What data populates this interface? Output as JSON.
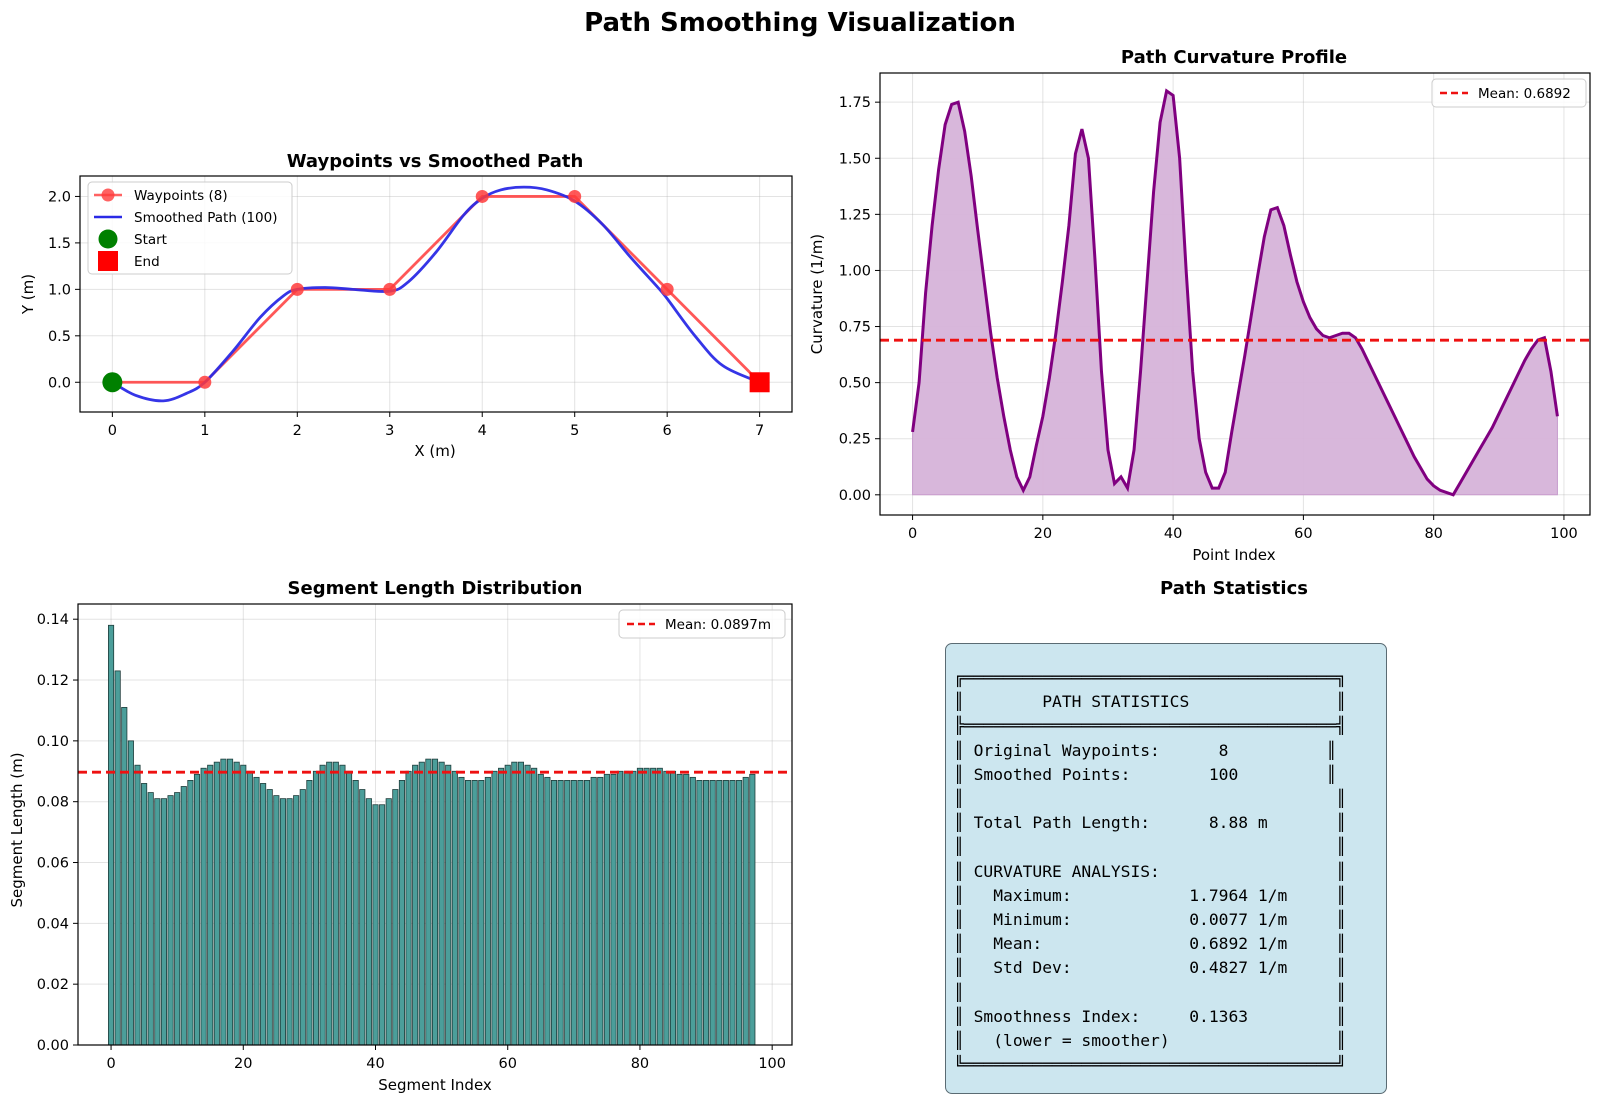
{
  "suptitle": "Path Smoothing Visualization",
  "colors": {
    "waypoints": "#ff3b3b",
    "smoothed": "#2a2ae6",
    "start": "#008000",
    "end": "#ff0000",
    "curvature_line": "#800080",
    "curvature_fill": "#d6b3d9",
    "mean": "#ee1111",
    "bar_fill": "#4b9e9a",
    "bar_edge": "#1f3d3b",
    "stats_bg": "#cce6ef"
  },
  "charts": {
    "waypoints": {
      "title": "Waypoints vs Smoothed Path",
      "xlabel": "X (m)",
      "ylabel": "Y (m)",
      "xlim": [
        -0.35,
        7.35
      ],
      "ylim": [
        -0.32,
        2.22
      ],
      "xticks": [
        "0",
        "1",
        "2",
        "3",
        "4",
        "5",
        "6",
        "7"
      ],
      "yticks": [
        "0.0",
        "0.5",
        "1.0",
        "1.5",
        "2.0"
      ],
      "legend": [
        "Waypoints (8)",
        "Smoothed Path (100)",
        "Start",
        "End"
      ]
    },
    "curvature": {
      "title": "Path Curvature Profile",
      "xlabel": "Point Index",
      "ylabel": "Curvature (1/m)",
      "xlim": [
        -5,
        104
      ],
      "ylim": [
        -0.09,
        1.88
      ],
      "xticks": [
        "0",
        "20",
        "40",
        "60",
        "80",
        "100"
      ],
      "yticks": [
        "0.00",
        "0.25",
        "0.50",
        "0.75",
        "1.00",
        "1.25",
        "1.50",
        "1.75"
      ],
      "legend": [
        "Mean: 0.6892"
      ]
    },
    "segments": {
      "title": "Segment Length Distribution",
      "xlabel": "Segment Index",
      "ylabel": "Segment Length (m)",
      "xlim": [
        -5,
        103
      ],
      "ylim": [
        0,
        0.145
      ],
      "xticks": [
        "0",
        "20",
        "40",
        "60",
        "80",
        "100"
      ],
      "yticks": [
        "0.00",
        "0.02",
        "0.04",
        "0.06",
        "0.08",
        "0.10",
        "0.12",
        "0.14"
      ],
      "legend": [
        "Mean: 0.0897m"
      ]
    },
    "stats": {
      "title": "Path Statistics",
      "lines": [
        "╔══════════════════════════════════════╗",
        "║        PATH STATISTICS               ║",
        "╠══════════════════════════════════════╣",
        "║ Original Waypoints:      8          ║",
        "║ Smoothed Points:        100         ║",
        "║                                      ║",
        "║ Total Path Length:      8.88 m       ║",
        "║                                      ║",
        "║ CURVATURE ANALYSIS:                  ║",
        "║   Maximum:            1.7964 1/m     ║",
        "║   Minimum:            0.0077 1/m     ║",
        "║   Mean:               0.6892 1/m     ║",
        "║   Std Dev:            0.4827 1/m     ║",
        "║                                      ║",
        "║ Smoothness Index:     0.1363         ║",
        "║   (lower = smoother)                 ║",
        "╚══════════════════════════════════════╝"
      ]
    }
  },
  "chart_data": [
    {
      "type": "line",
      "title": "Waypoints vs Smoothed Path",
      "xlabel": "X (m)",
      "ylabel": "Y (m)",
      "series": [
        {
          "name": "Waypoints (8)",
          "x": [
            0,
            1,
            2,
            3,
            4,
            5,
            6,
            7
          ],
          "y": [
            0,
            0,
            1,
            1,
            2,
            2,
            1,
            0
          ]
        },
        {
          "name": "Smoothed Path (100)",
          "x": [
            0,
            0.25,
            0.55,
            0.8,
            1,
            1.3,
            1.6,
            1.85,
            2,
            2.3,
            2.6,
            3,
            3.2,
            3.5,
            3.8,
            4,
            4.2,
            4.45,
            4.7,
            5,
            5.3,
            5.6,
            5.9,
            6,
            6.3,
            6.6,
            7
          ],
          "y": [
            0,
            -0.14,
            -0.2,
            -0.12,
            0,
            0.33,
            0.7,
            0.93,
            1,
            1.02,
            1,
            0.98,
            1.08,
            1.4,
            1.8,
            1.98,
            2.07,
            2.1,
            2.07,
            1.95,
            1.7,
            1.35,
            1.02,
            0.9,
            0.5,
            0.18,
            0
          ]
        },
        {
          "name": "Start",
          "x": [
            0
          ],
          "y": [
            0
          ]
        },
        {
          "name": "End",
          "x": [
            7
          ],
          "y": [
            0
          ]
        }
      ],
      "xlim": [
        -0.35,
        7.35
      ],
      "ylim": [
        -0.32,
        2.22
      ],
      "legend": "upper-left",
      "grid": true
    },
    {
      "type": "area",
      "title": "Path Curvature Profile",
      "xlabel": "Point Index",
      "ylabel": "Curvature (1/m)",
      "x": [
        0,
        1,
        2,
        3,
        4,
        5,
        6,
        7,
        8,
        9,
        10,
        11,
        12,
        13,
        14,
        15,
        16,
        17,
        18,
        19,
        20,
        21,
        22,
        23,
        24,
        25,
        26,
        27,
        28,
        29,
        30,
        31,
        32,
        33,
        34,
        35,
        36,
        37,
        38,
        39,
        40,
        41,
        42,
        43,
        44,
        45,
        46,
        47,
        48,
        49,
        50,
        51,
        52,
        53,
        54,
        55,
        56,
        57,
        58,
        59,
        60,
        61,
        62,
        63,
        64,
        65,
        66,
        67,
        68,
        69,
        70,
        71,
        72,
        73,
        74,
        75,
        76,
        77,
        78,
        79,
        80,
        81,
        82,
        83,
        84,
        85,
        86,
        87,
        88,
        89,
        90,
        91,
        92,
        93,
        94,
        95,
        96,
        97,
        98,
        99
      ],
      "series": [
        {
          "name": "Curvature",
          "values": [
            0.28,
            0.5,
            0.9,
            1.2,
            1.45,
            1.65,
            1.74,
            1.75,
            1.62,
            1.42,
            1.18,
            0.95,
            0.72,
            0.52,
            0.35,
            0.2,
            0.08,
            0.02,
            0.08,
            0.22,
            0.35,
            0.52,
            0.72,
            0.95,
            1.2,
            1.52,
            1.63,
            1.5,
            1.05,
            0.55,
            0.2,
            0.05,
            0.08,
            0.03,
            0.2,
            0.55,
            0.95,
            1.35,
            1.66,
            1.8,
            1.78,
            1.5,
            1.0,
            0.55,
            0.25,
            0.1,
            0.03,
            0.03,
            0.1,
            0.28,
            0.45,
            0.62,
            0.8,
            0.98,
            1.15,
            1.27,
            1.28,
            1.2,
            1.07,
            0.95,
            0.86,
            0.79,
            0.74,
            0.71,
            0.7,
            0.71,
            0.72,
            0.72,
            0.7,
            0.65,
            0.59,
            0.53,
            0.47,
            0.41,
            0.35,
            0.29,
            0.23,
            0.17,
            0.12,
            0.07,
            0.04,
            0.02,
            0.01,
            0.0,
            0.05,
            0.1,
            0.15,
            0.2,
            0.25,
            0.3,
            0.36,
            0.42,
            0.48,
            0.54,
            0.6,
            0.65,
            0.69,
            0.7,
            0.55,
            0.35
          ]
        }
      ],
      "mean": 0.6892,
      "xlim": [
        -5,
        104
      ],
      "ylim": [
        -0.09,
        1.88
      ],
      "legend": "upper-right",
      "grid": true
    },
    {
      "type": "bar",
      "title": "Segment Length Distribution",
      "xlabel": "Segment Index",
      "ylabel": "Segment Length (m)",
      "values": [
        0.138,
        0.123,
        0.111,
        0.1,
        0.092,
        0.086,
        0.083,
        0.081,
        0.081,
        0.082,
        0.083,
        0.085,
        0.087,
        0.089,
        0.091,
        0.092,
        0.093,
        0.094,
        0.094,
        0.093,
        0.092,
        0.09,
        0.088,
        0.086,
        0.084,
        0.082,
        0.081,
        0.081,
        0.082,
        0.084,
        0.087,
        0.09,
        0.092,
        0.093,
        0.093,
        0.092,
        0.09,
        0.087,
        0.084,
        0.081,
        0.079,
        0.079,
        0.081,
        0.084,
        0.087,
        0.09,
        0.092,
        0.093,
        0.094,
        0.094,
        0.093,
        0.092,
        0.09,
        0.088,
        0.087,
        0.087,
        0.087,
        0.088,
        0.09,
        0.091,
        0.092,
        0.093,
        0.093,
        0.092,
        0.091,
        0.089,
        0.088,
        0.087,
        0.087,
        0.087,
        0.087,
        0.087,
        0.087,
        0.088,
        0.088,
        0.089,
        0.089,
        0.09,
        0.09,
        0.09,
        0.091,
        0.091,
        0.091,
        0.091,
        0.09,
        0.09,
        0.089,
        0.089,
        0.088,
        0.087,
        0.087,
        0.087,
        0.087,
        0.087,
        0.087,
        0.087,
        0.088,
        0.089
      ],
      "mean": 0.0897,
      "xlim": [
        -5,
        103
      ],
      "ylim": [
        0,
        0.145
      ],
      "legend": "upper-right",
      "grid": true
    }
  ]
}
